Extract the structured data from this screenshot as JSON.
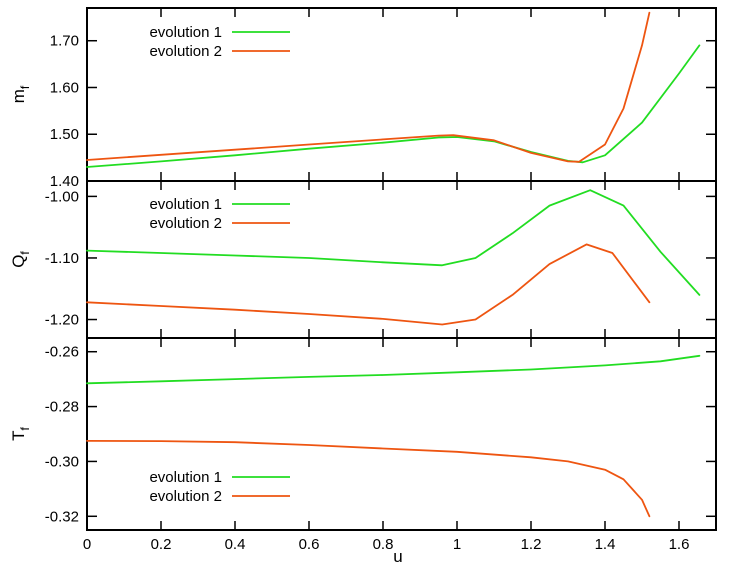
{
  "chart_data": [
    {
      "type": "line",
      "ylabel": "m",
      "ylabel_sub": "f",
      "xlim": [
        0,
        1.7
      ],
      "ylim": [
        1.4,
        1.77
      ],
      "yticks": [
        1.4,
        1.5,
        1.6,
        1.7
      ],
      "ytick_labels": [
        "1.40",
        "1.50",
        "1.60",
        "1.70"
      ],
      "legend_position": "top-left",
      "series": [
        {
          "name": "evolution 1",
          "color": "#22dd22",
          "x": [
            0,
            0.2,
            0.4,
            0.6,
            0.8,
            0.95,
            1.0,
            1.1,
            1.2,
            1.3,
            1.34,
            1.4,
            1.5,
            1.6,
            1.655
          ],
          "y": [
            1.43,
            1.442,
            1.455,
            1.469,
            1.482,
            1.493,
            1.494,
            1.485,
            1.462,
            1.443,
            1.44,
            1.455,
            1.525,
            1.63,
            1.69
          ]
        },
        {
          "name": "evolution 2",
          "color": "#ee5511",
          "x": [
            0,
            0.2,
            0.4,
            0.6,
            0.8,
            0.95,
            0.99,
            1.1,
            1.2,
            1.3,
            1.33,
            1.4,
            1.45,
            1.5,
            1.52
          ],
          "y": [
            1.445,
            1.456,
            1.467,
            1.478,
            1.489,
            1.497,
            1.498,
            1.487,
            1.46,
            1.442,
            1.441,
            1.478,
            1.555,
            1.69,
            1.76
          ]
        }
      ]
    },
    {
      "type": "line",
      "ylabel": "Q",
      "ylabel_sub": "f",
      "xlim": [
        0,
        1.7
      ],
      "ylim": [
        -1.23,
        -0.975
      ],
      "yticks": [
        -1.2,
        -1.1,
        -1.0
      ],
      "ytick_labels": [
        "-1.20",
        "-1.10",
        "-1.00"
      ],
      "legend_position": "top-left",
      "series": [
        {
          "name": "evolution 1",
          "color": "#22dd22",
          "x": [
            0,
            0.2,
            0.4,
            0.6,
            0.8,
            0.96,
            1.05,
            1.15,
            1.25,
            1.36,
            1.45,
            1.55,
            1.655
          ],
          "y": [
            -1.088,
            -1.092,
            -1.096,
            -1.1,
            -1.107,
            -1.112,
            -1.1,
            -1.06,
            -1.015,
            -0.99,
            -1.015,
            -1.09,
            -1.16
          ]
        },
        {
          "name": "evolution 2",
          "color": "#ee5511",
          "x": [
            0,
            0.2,
            0.4,
            0.6,
            0.8,
            0.96,
            1.05,
            1.15,
            1.25,
            1.35,
            1.42,
            1.52
          ],
          "y": [
            -1.172,
            -1.178,
            -1.184,
            -1.191,
            -1.199,
            -1.208,
            -1.2,
            -1.16,
            -1.11,
            -1.078,
            -1.092,
            -1.172
          ]
        }
      ]
    },
    {
      "type": "line",
      "xlabel": "u",
      "ylabel": "T",
      "ylabel_sub": "f",
      "xlim": [
        0,
        1.7
      ],
      "ylim": [
        -0.325,
        -0.255
      ],
      "xticks": [
        0,
        0.2,
        0.4,
        0.6,
        0.8,
        1,
        1.2,
        1.4,
        1.6
      ],
      "xtick_labels": [
        "0",
        "0.2",
        "0.4",
        "0.6",
        "0.8",
        "1",
        "1.2",
        "1.4",
        "1.6"
      ],
      "yticks": [
        -0.32,
        -0.3,
        -0.28,
        -0.26
      ],
      "ytick_labels": [
        "-0.32",
        "-0.30",
        "-0.28",
        "-0.26"
      ],
      "legend_position": "bottom-left",
      "series": [
        {
          "name": "evolution 1",
          "color": "#22dd22",
          "x": [
            0,
            0.2,
            0.4,
            0.6,
            0.8,
            1.0,
            1.2,
            1.4,
            1.55,
            1.655
          ],
          "y": [
            -0.2715,
            -0.2708,
            -0.27,
            -0.2692,
            -0.2685,
            -0.2675,
            -0.2665,
            -0.265,
            -0.2635,
            -0.2615
          ]
        },
        {
          "name": "evolution 2",
          "color": "#ee5511",
          "x": [
            0,
            0.2,
            0.4,
            0.6,
            0.8,
            1.0,
            1.2,
            1.3,
            1.4,
            1.45,
            1.5,
            1.52
          ],
          "y": [
            -0.2925,
            -0.2926,
            -0.293,
            -0.294,
            -0.2953,
            -0.2965,
            -0.2985,
            -0.3,
            -0.303,
            -0.3065,
            -0.314,
            -0.32
          ]
        }
      ]
    }
  ]
}
